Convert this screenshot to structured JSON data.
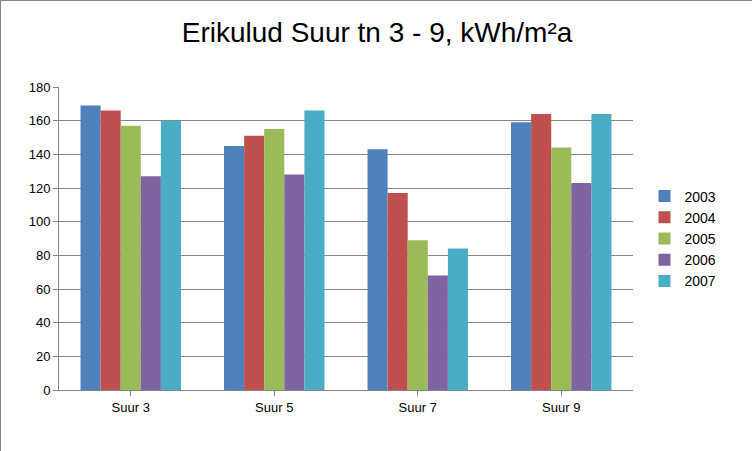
{
  "chart_data": {
    "type": "bar",
    "title": "Erikulud Suur tn 3 - 9, kWh/m²a",
    "categories": [
      "Suur 3",
      "Suur 5",
      "Suur 7",
      "Suur 9"
    ],
    "series": [
      {
        "name": "2003",
        "color": "#4f81bd",
        "values": [
          169,
          145,
          143,
          159
        ]
      },
      {
        "name": "2004",
        "color": "#c0504d",
        "values": [
          166,
          151,
          117,
          164
        ]
      },
      {
        "name": "2005",
        "color": "#9bbb59",
        "values": [
          157,
          155,
          89,
          144
        ]
      },
      {
        "name": "2006",
        "color": "#8064a2",
        "values": [
          127,
          128,
          68,
          123
        ]
      },
      {
        "name": "2007",
        "color": "#4bacc6",
        "values": [
          160,
          166,
          84,
          164
        ]
      }
    ],
    "ylim": [
      0,
      180
    ],
    "yticks": [
      0,
      20,
      40,
      60,
      80,
      100,
      120,
      140,
      160,
      180
    ],
    "grid": true,
    "legend": "right"
  }
}
